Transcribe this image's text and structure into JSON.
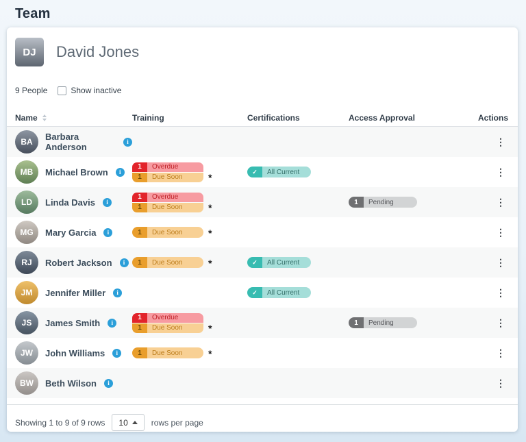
{
  "page": {
    "title": "Team"
  },
  "manager": {
    "name": "David Jones",
    "initials": "DJ"
  },
  "toolbar": {
    "people_count": "9 People",
    "show_inactive_label": "Show inactive"
  },
  "table": {
    "columns": [
      "Name",
      "Training",
      "Certifications",
      "Access Approval",
      "Actions"
    ],
    "rows": [
      {
        "name": "Barbara Anderson",
        "initials": "BA",
        "training": [],
        "training_asterisk": false,
        "certification": null,
        "access": null
      },
      {
        "name": "Michael Brown",
        "initials": "MB",
        "training": [
          {
            "kind": "overdue",
            "count": "1"
          },
          {
            "kind": "due_soon",
            "count": "1"
          }
        ],
        "training_asterisk": true,
        "certification": {
          "kind": "all_current"
        },
        "access": null
      },
      {
        "name": "Linda Davis",
        "initials": "LD",
        "training": [
          {
            "kind": "overdue",
            "count": "1"
          },
          {
            "kind": "due_soon",
            "count": "1"
          }
        ],
        "training_asterisk": true,
        "certification": null,
        "access": {
          "kind": "pending",
          "count": "1"
        }
      },
      {
        "name": "Mary Garcia",
        "initials": "MG",
        "training": [
          {
            "kind": "due_soon",
            "count": "1"
          }
        ],
        "training_asterisk": true,
        "certification": null,
        "access": null
      },
      {
        "name": "Robert Jackson",
        "initials": "RJ",
        "training": [
          {
            "kind": "due_soon",
            "count": "1"
          }
        ],
        "training_asterisk": true,
        "certification": {
          "kind": "all_current"
        },
        "access": null
      },
      {
        "name": "Jennifer Miller",
        "initials": "JM",
        "training": [],
        "training_asterisk": false,
        "certification": {
          "kind": "all_current"
        },
        "access": null
      },
      {
        "name": "James Smith",
        "initials": "JS",
        "training": [
          {
            "kind": "overdue",
            "count": "1"
          },
          {
            "kind": "due_soon",
            "count": "1"
          }
        ],
        "training_asterisk": true,
        "certification": null,
        "access": {
          "kind": "pending",
          "count": "1"
        }
      },
      {
        "name": "John Williams",
        "initials": "JW",
        "training": [
          {
            "kind": "due_soon",
            "count": "1"
          }
        ],
        "training_asterisk": true,
        "certification": null,
        "access": null
      },
      {
        "name": "Beth Wilson",
        "initials": "BW",
        "training": [],
        "training_asterisk": false,
        "certification": null,
        "access": null
      }
    ]
  },
  "badge_labels": {
    "overdue": "Overdue",
    "due_soon": "Due Soon",
    "all_current": "All Current",
    "pending": "Pending"
  },
  "icons": {
    "info": "i",
    "check": "✓",
    "actions_kebab": "⋮",
    "asterisk": "*",
    "caret": "up"
  },
  "footer": {
    "showing": "Showing 1 to 9 of 9 rows",
    "page_size": "10",
    "rows_per_page_label": "rows per page"
  },
  "colors": {
    "accent_blue": "#2b9fd9",
    "overdue_count": "#e2242b",
    "overdue_bg": "#f79ba1",
    "overdue_text": "#bf2026",
    "due_soon_count": "#e99e2c",
    "due_soon_bg": "#f8d094",
    "due_soon_text": "#bc7d1c",
    "all_current_count": "#38bcb1",
    "all_current_bg": "#a5ded9",
    "all_current_text": "#356f69",
    "pending_count": "#6f7072",
    "pending_bg": "#d2d4d5",
    "pending_text": "#55565a",
    "row_alt_bg": "#f7f8f8",
    "card_bg": "#ffffff",
    "title_text": "#24313f"
  }
}
